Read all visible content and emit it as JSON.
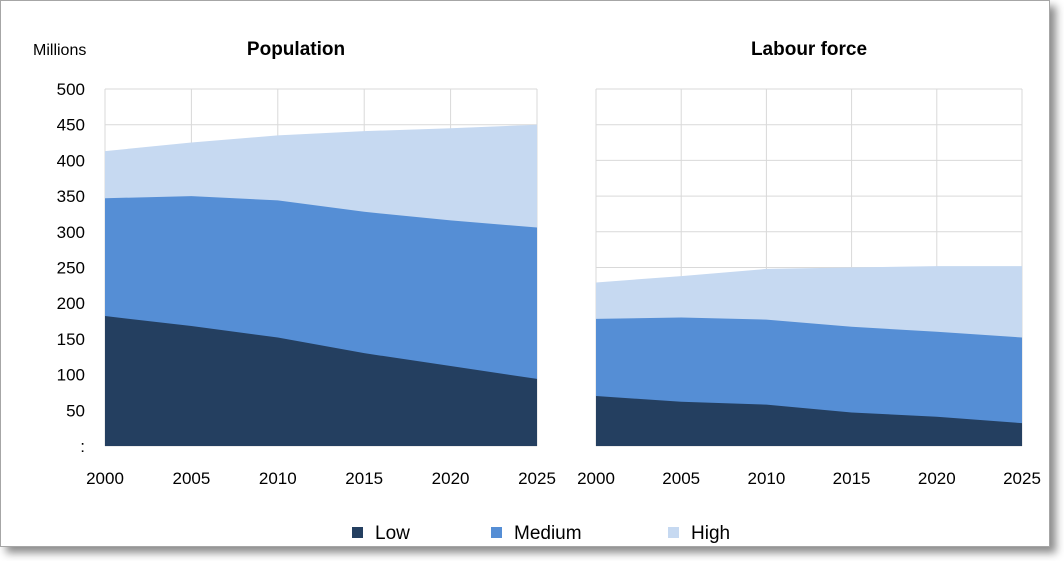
{
  "chart_data": [
    {
      "type": "area",
      "title": "Population",
      "unit_label": "Millions",
      "x": [
        2000,
        2005,
        2010,
        2015,
        2020,
        2025
      ],
      "xlim": [
        2000,
        2025
      ],
      "ylim": [
        0,
        500
      ],
      "y_ticks": [
        ":",
        "50",
        "100",
        "150",
        "200",
        "250",
        "300",
        "350",
        "400",
        "450",
        "500"
      ],
      "x_ticks": [
        "2000",
        "2005",
        "2010",
        "2015",
        "2020",
        "2025"
      ],
      "grid": true,
      "series": [
        {
          "name": "Low",
          "values": [
            182,
            168,
            152,
            130,
            112,
            94
          ]
        },
        {
          "name": "Medium",
          "values": [
            347,
            350,
            344,
            328,
            316,
            306
          ]
        },
        {
          "name": "High",
          "values": [
            413,
            425,
            435,
            441,
            445,
            450
          ]
        }
      ]
    },
    {
      "type": "area",
      "title": "Labour force",
      "x": [
        2000,
        2005,
        2010,
        2015,
        2020,
        2025
      ],
      "xlim": [
        2000,
        2025
      ],
      "ylim": [
        0,
        500
      ],
      "x_ticks": [
        "2000",
        "2005",
        "2010",
        "2015",
        "2020",
        "2025"
      ],
      "grid": true,
      "series": [
        {
          "name": "Low",
          "values": [
            70,
            62,
            58,
            47,
            41,
            32
          ]
        },
        {
          "name": "Medium",
          "values": [
            178,
            180,
            177,
            167,
            160,
            152
          ]
        },
        {
          "name": "High",
          "values": [
            229,
            238,
            248,
            250,
            252,
            252
          ]
        }
      ]
    }
  ],
  "legend": {
    "position": "bottom-center",
    "items": [
      {
        "label": "Low",
        "color": "#243f60"
      },
      {
        "label": "Medium",
        "color": "#558ed5"
      },
      {
        "label": "High",
        "color": "#c6d9f1"
      }
    ]
  },
  "colors": {
    "low": "#243f60",
    "medium": "#558ed5",
    "high": "#c6d9f1",
    "grid": "#d9d9d9"
  }
}
